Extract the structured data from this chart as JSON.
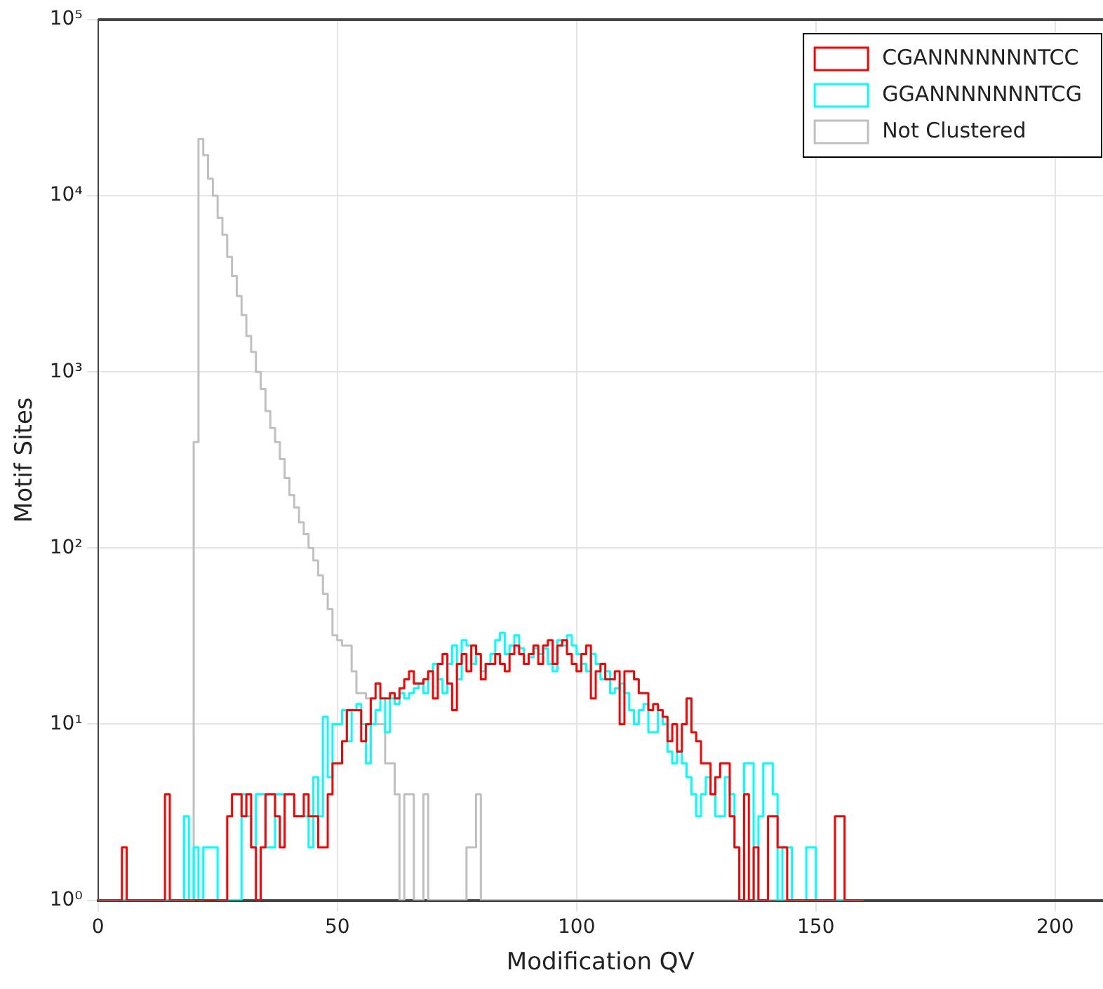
{
  "chart_data": {
    "type": "histogram",
    "xlabel": "Modification QV",
    "ylabel": "Motif Sites",
    "bins": [
      0,
      1,
      2,
      3,
      4,
      5,
      6,
      7,
      8,
      9,
      10,
      11,
      12,
      13,
      14,
      15,
      16,
      17,
      18,
      19,
      20,
      21,
      22,
      23,
      24,
      25,
      26,
      27,
      28,
      29,
      30,
      31,
      32,
      33,
      34,
      35,
      36,
      37,
      38,
      39,
      40,
      41,
      42,
      43,
      44,
      45,
      46,
      47,
      48,
      49,
      50,
      51,
      52,
      53,
      54,
      55,
      56,
      57,
      58,
      59,
      60,
      61,
      62,
      63,
      64,
      65,
      66,
      67,
      68,
      69,
      70,
      71,
      72,
      73,
      74,
      75,
      76,
      77,
      78,
      79,
      80,
      81,
      82,
      83,
      84,
      85,
      86,
      87,
      88,
      89,
      90,
      91,
      92,
      93,
      94,
      95,
      96,
      97,
      98,
      99,
      100,
      101,
      102,
      103,
      104,
      105,
      106,
      107,
      108,
      109,
      110,
      111,
      112,
      113,
      114,
      115,
      116,
      117,
      118,
      119,
      120,
      121,
      122,
      123,
      124,
      125,
      126,
      127,
      128,
      129,
      130,
      131,
      132,
      133,
      134,
      135,
      136,
      137,
      138,
      139,
      140,
      141,
      142,
      143,
      144,
      145,
      146,
      147,
      148,
      149,
      150,
      151,
      152,
      153,
      154,
      155,
      156,
      157,
      158,
      159,
      160
    ],
    "series": [
      {
        "name": "CGANNNNNNNTCC",
        "color": "#ff0000",
        "values": [
          null,
          null,
          null,
          null,
          null,
          2,
          null,
          null,
          null,
          null,
          null,
          null,
          null,
          null,
          4,
          null,
          null,
          null,
          null,
          null,
          null,
          null,
          null,
          null,
          null,
          null,
          null,
          3,
          4,
          4,
          3,
          4,
          2,
          null,
          2,
          4,
          4,
          3,
          2,
          4,
          4,
          3,
          3,
          4,
          3,
          3,
          2,
          2,
          4,
          6,
          6,
          8,
          12,
          12,
          12,
          8,
          10,
          14,
          17,
          14,
          14,
          15,
          14,
          16,
          18,
          20,
          17,
          17,
          18,
          20,
          14,
          22,
          25,
          17,
          12,
          22,
          25,
          20,
          28,
          25,
          18,
          22,
          22,
          25,
          22,
          20,
          25,
          28,
          25,
          22,
          25,
          28,
          22,
          28,
          30,
          22,
          28,
          30,
          25,
          22,
          20,
          25,
          28,
          14,
          20,
          22,
          18,
          18,
          20,
          10,
          20,
          20,
          18,
          15,
          15,
          12,
          13,
          12,
          11,
          8,
          10,
          7,
          10,
          14,
          9,
          8,
          6,
          6,
          4,
          5,
          6,
          6,
          3,
          2,
          null,
          4,
          null,
          2,
          null,
          null,
          3,
          3,
          2,
          2,
          null,
          null,
          null,
          null,
          null,
          null,
          null,
          null,
          null,
          null,
          3,
          3,
          null,
          null,
          null,
          null
        ]
      },
      {
        "name": "GGANNNNNNNTCG",
        "color": "#00ffff",
        "values": [
          null,
          null,
          null,
          null,
          null,
          null,
          null,
          null,
          null,
          null,
          null,
          null,
          null,
          null,
          null,
          null,
          null,
          null,
          3,
          null,
          2,
          null,
          2,
          2,
          2,
          null,
          null,
          null,
          null,
          null,
          4,
          3,
          2,
          4,
          4,
          2,
          2,
          4,
          4,
          4,
          4,
          3,
          3,
          3,
          2,
          5,
          3,
          11,
          5,
          10,
          10,
          12,
          8,
          12,
          13,
          10,
          6,
          10,
          12,
          14,
          9,
          14,
          13,
          15,
          14,
          15,
          16,
          17,
          15,
          20,
          22,
          18,
          15,
          22,
          28,
          18,
          30,
          28,
          22,
          25,
          20,
          22,
          25,
          30,
          33,
          25,
          28,
          32,
          27,
          22,
          24,
          27,
          25,
          27,
          22,
          20,
          30,
          28,
          32,
          28,
          25,
          22,
          20,
          25,
          22,
          18,
          20,
          15,
          16,
          17,
          15,
          12,
          10,
          12,
          13,
          9,
          9,
          12,
          10,
          7,
          6,
          7,
          6,
          5,
          4,
          3,
          4,
          5,
          4,
          3,
          3,
          5,
          4,
          2,
          null,
          6,
          6,
          null,
          3,
          6,
          6,
          4,
          null,
          2,
          2,
          null,
          null,
          null,
          2,
          2,
          null,
          null,
          null,
          null,
          null,
          null,
          null,
          null,
          null,
          null
        ]
      },
      {
        "name": "Not Clustered",
        "color": "#c0c0c0",
        "values": [
          null,
          null,
          null,
          null,
          null,
          null,
          null,
          null,
          null,
          null,
          null,
          null,
          null,
          null,
          null,
          null,
          null,
          null,
          null,
          null,
          400,
          21000,
          17000,
          12500,
          10000,
          7500,
          6000,
          4500,
          3500,
          2700,
          2100,
          1600,
          1300,
          1000,
          800,
          600,
          480,
          400,
          320,
          250,
          200,
          170,
          140,
          120,
          100,
          85,
          70,
          55,
          45,
          32,
          30,
          28,
          28,
          20,
          15,
          15,
          14,
          10,
          10,
          10,
          6,
          6,
          4,
          null,
          4,
          4,
          null,
          null,
          4,
          null,
          null,
          null,
          null,
          null,
          null,
          null,
          null,
          2,
          2,
          4,
          null,
          null,
          null,
          null,
          null,
          null,
          null,
          null,
          null,
          null,
          null,
          null,
          null,
          null,
          null,
          null,
          null,
          null,
          null,
          null,
          null,
          null,
          null,
          null,
          null,
          null,
          null,
          null,
          null,
          null,
          null,
          null,
          null,
          null,
          null,
          null,
          null,
          null,
          null,
          null,
          null,
          null,
          null,
          null,
          null,
          null,
          null,
          null,
          null,
          null,
          null,
          null,
          null,
          null,
          null,
          null,
          null,
          null,
          null,
          null,
          null,
          null,
          null,
          null,
          null,
          null,
          null,
          null,
          null,
          null,
          null,
          null,
          null,
          null,
          null,
          null,
          null,
          null,
          null,
          null
        ]
      }
    ],
    "xlim": [
      0,
      210
    ],
    "xticks": [
      0,
      50,
      100,
      150,
      200
    ],
    "ylim": [
      1,
      100000
    ],
    "yticks": [
      {
        "value": 1,
        "label": "10⁰"
      },
      {
        "value": 10,
        "label": "10¹"
      },
      {
        "value": 100,
        "label": "10²"
      },
      {
        "value": 1000,
        "label": "10³"
      },
      {
        "value": 10000,
        "label": "10⁴"
      },
      {
        "value": 100000,
        "label": "10⁵"
      }
    ],
    "log": "y",
    "grid": true,
    "legend": "top right"
  }
}
